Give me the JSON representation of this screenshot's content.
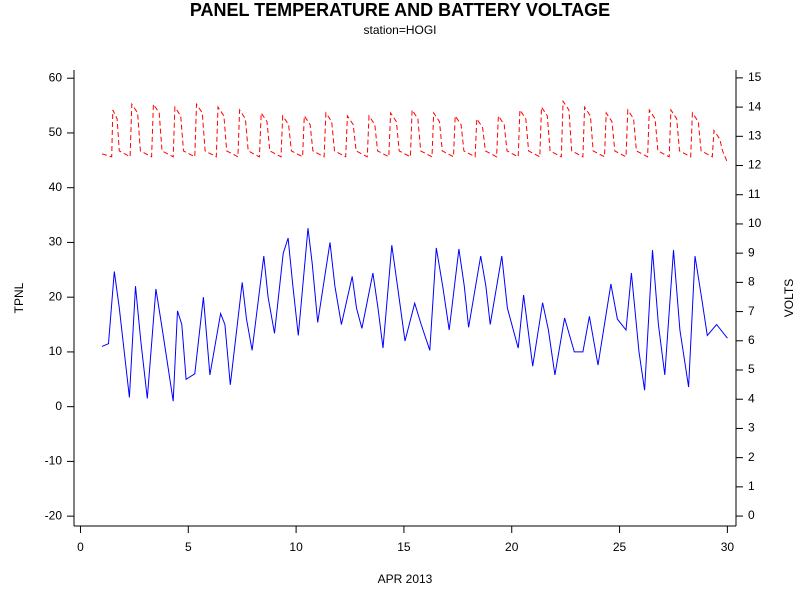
{
  "chart_data": {
    "type": "line",
    "title": "PANEL TEMPERATURE AND BATTERY VOLTAGE",
    "subtitle": "station=HOGI",
    "xlabel": "APR 2013",
    "ylabel": "TPNL",
    "y2label": "VOLTS",
    "xlim": [
      -0.3,
      30.4
    ],
    "xticks": [
      0,
      5,
      10,
      15,
      20,
      25,
      30
    ],
    "ylim": [
      -21.8,
      61.5
    ],
    "yticks": [
      -20,
      -10,
      0,
      10,
      20,
      30,
      40,
      50,
      60
    ],
    "y2lim": [
      -0.34,
      15.27
    ],
    "y2ticks": [
      0,
      1,
      2,
      3,
      4,
      5,
      6,
      7,
      8,
      9,
      10,
      11,
      12,
      13,
      14,
      15
    ],
    "series": [
      {
        "color": "#0000ff",
        "dash": false,
        "x": [
          1.0,
          1.3,
          1.57,
          1.8,
          2.27,
          2.55,
          2.8,
          3.1,
          3.5,
          3.8,
          4.3,
          4.5,
          4.7,
          4.9,
          5.3,
          5.7,
          6.0,
          6.5,
          6.7,
          6.95,
          7.5,
          7.7,
          7.96,
          8.5,
          8.7,
          9.0,
          9.4,
          9.63,
          9.85,
          10.1,
          10.55,
          10.75,
          11.0,
          11.57,
          11.8,
          12.1,
          12.6,
          12.8,
          13.05,
          13.56,
          13.8,
          14.03,
          14.44,
          14.7,
          15.05,
          15.5,
          15.8,
          16.2,
          16.5,
          16.8,
          17.1,
          17.55,
          17.8,
          18.0,
          18.56,
          18.8,
          19.0,
          19.54,
          19.8,
          20.3,
          20.55,
          20.97,
          21.43,
          21.7,
          22.0,
          22.45,
          22.9,
          23.3,
          23.6,
          24.0,
          24.6,
          24.9,
          25.3,
          25.55,
          25.9,
          26.16,
          26.53,
          26.8,
          27.1,
          27.5,
          27.8,
          28.2,
          28.5,
          28.8,
          29.07,
          29.5,
          30.0
        ],
        "values": [
          11,
          11.5,
          24.7,
          18,
          1.7,
          22,
          12,
          1.5,
          21.5,
          14,
          1,
          17.5,
          15,
          5,
          6,
          20,
          5.8,
          17,
          15,
          4,
          22.7,
          16,
          10.3,
          27.5,
          20,
          13.4,
          28,
          30.8,
          22,
          13,
          32.6,
          26,
          15.4,
          30,
          22,
          15,
          23.8,
          18,
          14.3,
          24.4,
          18,
          10.7,
          29.5,
          22,
          12,
          18.9,
          15,
          10.3,
          29,
          22,
          14,
          28.8,
          22,
          14.5,
          27.5,
          22,
          15,
          27.5,
          18,
          10.7,
          20.4,
          7.4,
          19,
          14,
          5.8,
          16.2,
          10,
          10,
          16.5,
          7.6,
          22.4,
          16,
          14,
          24.4,
          10,
          3,
          28.6,
          15,
          5.8,
          28.6,
          14,
          3.6,
          27.5,
          20,
          13,
          15,
          12.5
        ]
      },
      {
        "color": "#ff0000",
        "dash": true,
        "axis": "y2",
        "x": [
          1.0,
          1.45,
          1.5,
          1.7,
          1.8,
          2.3,
          2.38,
          2.65,
          2.78,
          3.3,
          3.38,
          3.65,
          3.78,
          4.3,
          4.38,
          4.65,
          4.78,
          5.3,
          5.38,
          5.65,
          5.78,
          6.3,
          6.38,
          6.65,
          6.78,
          7.3,
          7.38,
          7.65,
          7.78,
          8.3,
          8.38,
          8.65,
          8.78,
          9.3,
          9.38,
          9.65,
          9.78,
          10.3,
          10.38,
          10.65,
          10.78,
          11.3,
          11.38,
          11.65,
          11.78,
          12.3,
          12.38,
          12.65,
          12.78,
          13.3,
          13.38,
          13.65,
          13.78,
          14.3,
          14.38,
          14.65,
          14.78,
          15.3,
          15.38,
          15.65,
          15.78,
          16.3,
          16.38,
          16.65,
          16.78,
          17.3,
          17.38,
          17.65,
          17.78,
          18.3,
          18.38,
          18.65,
          18.78,
          19.3,
          19.38,
          19.65,
          19.78,
          20.3,
          20.38,
          20.65,
          20.78,
          21.3,
          21.38,
          21.65,
          21.78,
          22.3,
          22.38,
          22.65,
          22.78,
          23.3,
          23.38,
          23.65,
          23.78,
          24.3,
          24.38,
          24.65,
          24.78,
          25.3,
          25.38,
          25.65,
          25.78,
          26.3,
          26.38,
          26.65,
          26.78,
          27.3,
          27.38,
          27.65,
          27.78,
          28.3,
          28.38,
          28.65,
          28.78,
          29.3,
          29.38,
          29.65,
          29.78,
          30.0
        ],
        "values": [
          12.4,
          12.3,
          13.9,
          13.6,
          12.5,
          12.3,
          14.1,
          13.8,
          12.5,
          12.3,
          14.1,
          13.8,
          12.5,
          12.3,
          14.0,
          13.7,
          12.5,
          12.3,
          14.1,
          13.8,
          12.5,
          12.3,
          14.0,
          13.7,
          12.5,
          12.3,
          13.9,
          13.6,
          12.5,
          12.3,
          13.8,
          13.5,
          12.5,
          12.3,
          13.7,
          13.4,
          12.5,
          12.3,
          13.7,
          13.4,
          12.5,
          12.3,
          13.8,
          13.5,
          12.5,
          12.3,
          13.7,
          13.4,
          12.5,
          12.3,
          13.7,
          13.4,
          12.5,
          12.3,
          13.8,
          13.5,
          12.5,
          12.3,
          13.9,
          13.6,
          12.5,
          12.3,
          13.8,
          13.5,
          12.5,
          12.3,
          13.7,
          13.4,
          12.5,
          12.3,
          13.6,
          13.3,
          12.5,
          12.3,
          13.7,
          13.4,
          12.5,
          12.3,
          13.9,
          13.6,
          12.5,
          12.3,
          14.0,
          13.7,
          12.5,
          12.3,
          14.2,
          13.9,
          12.5,
          12.3,
          14.0,
          13.7,
          12.5,
          12.3,
          13.8,
          13.5,
          12.5,
          12.3,
          13.9,
          13.6,
          12.5,
          12.3,
          13.9,
          13.6,
          12.5,
          12.3,
          13.9,
          13.6,
          12.5,
          12.3,
          13.8,
          13.5,
          12.5,
          12.3,
          13.2,
          12.9,
          12.5,
          12.1
        ]
      }
    ]
  }
}
